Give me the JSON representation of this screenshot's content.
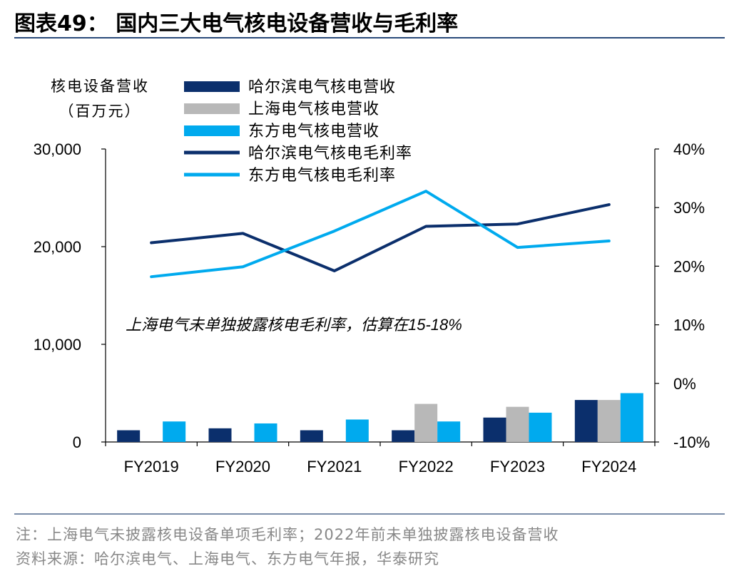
{
  "figure": {
    "title": "图表49：  国内三大电气核电设备营收与毛利率",
    "note": "注：上海电气未披露核电设备单项毛利率；2022年前未单独披露核电设备营收",
    "source": "资料来源：哈尔滨电气、上海电气、东方电气年报，华泰研究"
  },
  "colors": {
    "harbin": "#0b2f6c",
    "shanghai": "#b8b8b8",
    "dongfang": "#00aaee"
  },
  "chart_data": {
    "type": "bar",
    "categories": [
      "FY2019",
      "FY2020",
      "FY2021",
      "FY2022",
      "FY2023",
      "FY2024"
    ],
    "ylabel_line1": "核电设备营收",
    "ylabel_line2": "（百万元）",
    "ylim": [
      0,
      30000
    ],
    "yticks": [
      "0",
      "10,000",
      "20,000",
      "30,000"
    ],
    "y2lim": [
      -10,
      40
    ],
    "y2ticks": [
      "-10%",
      "0%",
      "10%",
      "20%",
      "30%",
      "40%"
    ],
    "series": [
      {
        "name": "哈尔滨电气核电营收",
        "type": "bar",
        "axis": "left",
        "color": "#0b2f6c",
        "values": [
          1200,
          1400,
          1200,
          1200,
          2500,
          4300
        ]
      },
      {
        "name": "上海电气核电营收",
        "type": "bar",
        "axis": "left",
        "color": "#b8b8b8",
        "values": [
          null,
          null,
          null,
          3900,
          3600,
          4300
        ]
      },
      {
        "name": "东方电气核电营收",
        "type": "bar",
        "axis": "left",
        "color": "#00aaee",
        "values": [
          2100,
          1900,
          2300,
          2100,
          3000,
          5000
        ]
      },
      {
        "name": "哈尔滨电气核电毛利率",
        "type": "line",
        "axis": "right",
        "color": "#0b2f6c",
        "values": [
          24.0,
          25.6,
          19.2,
          26.8,
          27.2,
          30.5
        ]
      },
      {
        "name": "东方电气核电毛利率",
        "type": "line",
        "axis": "right",
        "color": "#00aaee",
        "values": [
          18.2,
          19.9,
          26.0,
          32.8,
          23.2,
          24.3
        ]
      }
    ],
    "annotation": "上海电气未单独披露核电毛利率，估算在15-18%"
  }
}
